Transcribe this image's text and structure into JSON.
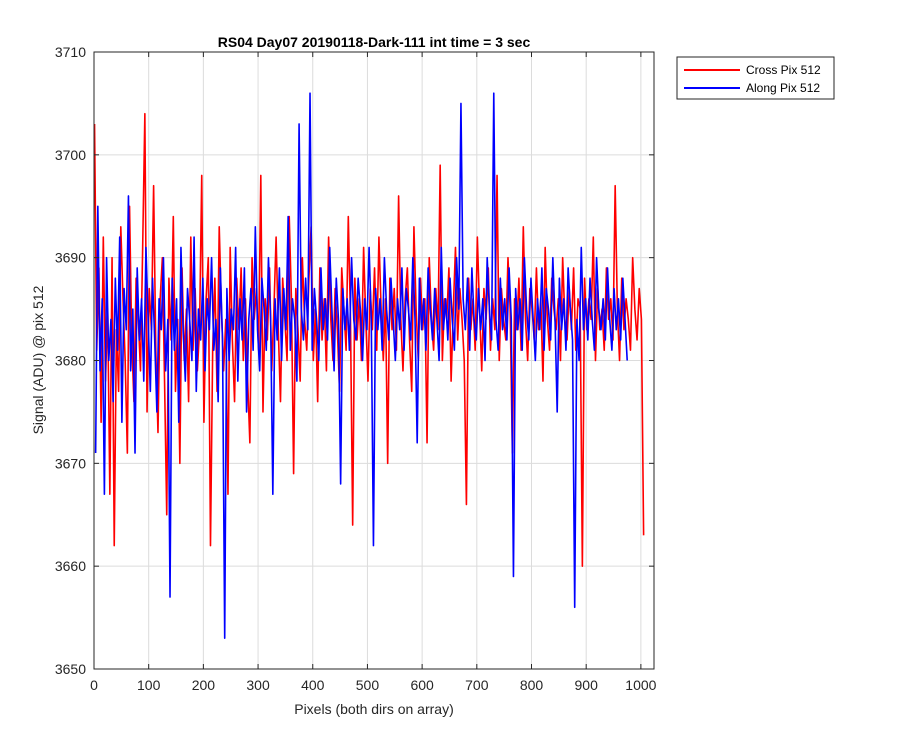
{
  "chart_data": {
    "type": "line",
    "title": "RS04 Day07 20190118-Dark-111 int time = 3 sec",
    "xlabel": "Pixels (both dirs on array)",
    "ylabel": "Signal (ADU) @ pix 512",
    "xlim": [
      0,
      1024
    ],
    "ylim": [
      3650,
      3710
    ],
    "xticks": [
      0,
      100,
      200,
      300,
      400,
      500,
      600,
      700,
      800,
      900,
      1000
    ],
    "yticks": [
      3650,
      3660,
      3670,
      3680,
      3690,
      3700,
      3710
    ],
    "grid": true,
    "legend_position": "outside top-right",
    "series": [
      {
        "name": "Cross Pix 512",
        "color": "#ff0000",
        "x_start": 1,
        "x_step": 4,
        "values": [
          3703,
          3681,
          3689,
          3674,
          3692,
          3678,
          3685,
          3667,
          3690,
          3662,
          3683,
          3677,
          3693,
          3686,
          3680,
          3671,
          3695,
          3682,
          3676,
          3688,
          3684,
          3679,
          3691,
          3704,
          3675,
          3687,
          3683,
          3697,
          3681,
          3673,
          3686,
          3690,
          3678,
          3665,
          3688,
          3682,
          3694,
          3677,
          3684,
          3670,
          3689,
          3680,
          3685,
          3676,
          3692,
          3681,
          3687,
          3679,
          3683,
          3698,
          3674,
          3686,
          3690,
          3662,
          3681,
          3688,
          3677,
          3693,
          3685,
          3679,
          3684,
          3667,
          3691,
          3682,
          3676,
          3688,
          3683,
          3689,
          3680,
          3686,
          3678,
          3672,
          3690,
          3684,
          3687,
          3681,
          3698,
          3675,
          3686,
          3682,
          3689,
          3679,
          3685,
          3692,
          3683,
          3676,
          3688,
          3684,
          3680,
          3694,
          3686,
          3669,
          3687,
          3683,
          3678,
          3690,
          3684,
          3681,
          3688,
          3693,
          3680,
          3685,
          3676,
          3689,
          3682,
          3686,
          3679,
          3692,
          3684,
          3680,
          3687,
          3683,
          3677,
          3689,
          3685,
          3681,
          3694,
          3684,
          3664,
          3688,
          3682,
          3686,
          3680,
          3691,
          3684,
          3678,
          3687,
          3683,
          3689,
          3681,
          3692,
          3685,
          3680,
          3686,
          3670,
          3688,
          3683,
          3687,
          3681,
          3696,
          3684,
          3679,
          3686,
          3689,
          3682,
          3677,
          3693,
          3685,
          3680,
          3688,
          3683,
          3686,
          3672,
          3690,
          3684,
          3681,
          3687,
          3683,
          3699,
          3680,
          3686,
          3684,
          3689,
          3678,
          3685,
          3691,
          3682,
          3687,
          3684,
          3680,
          3666,
          3688,
          3683,
          3686,
          3681,
          3692,
          3685,
          3679,
          3687,
          3684,
          3689,
          3681,
          3686,
          3683,
          3698,
          3680,
          3687,
          3684,
          3682,
          3690,
          3685,
          3671,
          3686,
          3683,
          3688,
          3681,
          3693,
          3684,
          3680,
          3687,
          3685,
          3682,
          3689,
          3683,
          3686,
          3678,
          3691,
          3684,
          3681,
          3688,
          3685,
          3683,
          3686,
          3680,
          3690,
          3684,
          3682,
          3687,
          3683,
          3689,
          3681,
          3686,
          3685,
          3660,
          3688,
          3683,
          3686,
          3684,
          3692,
          3680,
          3687,
          3683,
          3685,
          3681,
          3689,
          3684,
          3686,
          3682,
          3697,
          3685,
          3680,
          3688,
          3683,
          3686,
          3684,
          3681,
          3690,
          3685,
          3682,
          3687,
          3684,
          3663
        ]
      },
      {
        "name": "Along Pix 512",
        "color": "#0000ff",
        "x_start": 3,
        "x_step": 4,
        "values": [
          3671,
          3695,
          3679,
          3686,
          3667,
          3690,
          3680,
          3684,
          3676,
          3688,
          3681,
          3692,
          3674,
          3687,
          3683,
          3696,
          3679,
          3685,
          3671,
          3689,
          3682,
          3686,
          3678,
          3691,
          3684,
          3677,
          3688,
          3682,
          3675,
          3686,
          3683,
          3690,
          3679,
          3684,
          3657,
          3688,
          3681,
          3686,
          3674,
          3691,
          3683,
          3678,
          3687,
          3684,
          3680,
          3692,
          3677,
          3685,
          3682,
          3688,
          3679,
          3686,
          3683,
          3690,
          3681,
          3684,
          3676,
          3689,
          3682,
          3653,
          3687,
          3680,
          3685,
          3683,
          3691,
          3678,
          3686,
          3682,
          3689,
          3675,
          3684,
          3687,
          3681,
          3693,
          3683,
          3679,
          3688,
          3685,
          3681,
          3690,
          3684,
          3667,
          3686,
          3682,
          3689,
          3680,
          3687,
          3683,
          3694,
          3681,
          3686,
          3684,
          3678,
          3703,
          3685,
          3682,
          3688,
          3683,
          3706,
          3681,
          3687,
          3684,
          3680,
          3689,
          3683,
          3686,
          3682,
          3691,
          3685,
          3679,
          3688,
          3684,
          3668,
          3687,
          3683,
          3686,
          3681,
          3690,
          3684,
          3682,
          3688,
          3685,
          3680,
          3686,
          3683,
          3691,
          3684,
          3662,
          3687,
          3683,
          3686,
          3681,
          3690,
          3685,
          3682,
          3688,
          3684,
          3680,
          3686,
          3683,
          3689,
          3681,
          3687,
          3685,
          3682,
          3690,
          3684,
          3672,
          3688,
          3683,
          3686,
          3681,
          3689,
          3685,
          3682,
          3687,
          3684,
          3680,
          3691,
          3683,
          3686,
          3682,
          3688,
          3684,
          3681,
          3690,
          3685,
          3705,
          3686,
          3683,
          3688,
          3681,
          3689,
          3684,
          3682,
          3687,
          3683,
          3686,
          3680,
          3690,
          3685,
          3682,
          3706,
          3684,
          3681,
          3688,
          3683,
          3686,
          3682,
          3689,
          3684,
          3659,
          3687,
          3683,
          3686,
          3681,
          3690,
          3685,
          3682,
          3688,
          3684,
          3680,
          3686,
          3683,
          3689,
          3681,
          3687,
          3685,
          3682,
          3690,
          3684,
          3675,
          3688,
          3683,
          3686,
          3681,
          3689,
          3685,
          3682,
          3656,
          3684,
          3680,
          3691,
          3683,
          3686,
          3682,
          3688,
          3684,
          3681,
          3690,
          3685,
          3683,
          3686,
          3682,
          3689,
          3684,
          3681,
          3687,
          3683,
          3686,
          3682,
          3688,
          3684,
          3680
        ]
      }
    ]
  }
}
